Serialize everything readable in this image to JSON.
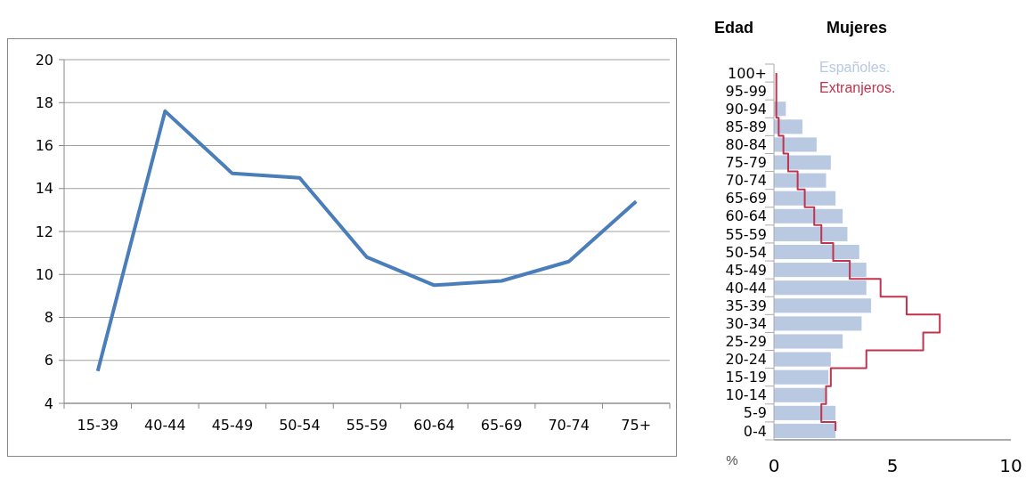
{
  "chart_data": [
    {
      "type": "line",
      "categories": [
        "15-39",
        "40-44",
        "45-49",
        "50-54",
        "55-59",
        "60-64",
        "65-69",
        "70-74",
        "75+"
      ],
      "series": [
        {
          "color": "#4a7ebb",
          "values": [
            5.5,
            17.6,
            14.7,
            14.5,
            10.8,
            9.5,
            9.7,
            10.6,
            13.4
          ]
        }
      ],
      "ylim": [
        4,
        20
      ],
      "yticks": [
        4,
        6,
        8,
        10,
        12,
        14,
        16,
        18,
        20
      ],
      "grid": "y",
      "legend": false
    },
    {
      "type": "bar",
      "orientation": "horizontal",
      "title": "Mujeres",
      "ylabel": "Edad",
      "xlabel": "%",
      "categories": [
        "100+",
        "95-99",
        "90-94",
        "85-89",
        "80-84",
        "75-79",
        "70-74",
        "65-69",
        "60-64",
        "55-59",
        "50-54",
        "45-49",
        "40-44",
        "35-39",
        "30-34",
        "25-29",
        "20-24",
        "15-19",
        "10-14",
        "5-9",
        "0-4"
      ],
      "series": [
        {
          "name": "Españoles.",
          "color": "#b9c9e1",
          "values": [
            0,
            0,
            0.5,
            1.2,
            1.8,
            2.4,
            2.2,
            2.6,
            2.9,
            3.1,
            3.6,
            3.9,
            3.9,
            4.1,
            3.7,
            2.9,
            2.4,
            2.3,
            2.2,
            2.6,
            2.6
          ]
        },
        {
          "name": "Extranjeros.",
          "type": "step",
          "color": "#c0344f",
          "values": [
            0.1,
            0.1,
            0.1,
            0.2,
            0.4,
            0.6,
            1.0,
            1.3,
            1.7,
            2.0,
            2.5,
            3.2,
            4.5,
            5.6,
            7.0,
            6.3,
            3.9,
            2.4,
            2.2,
            2.0,
            2.6
          ]
        }
      ],
      "xlim": [
        0,
        10
      ],
      "xticks": [
        0,
        5,
        10
      ],
      "grid": false,
      "legend": "top"
    }
  ]
}
